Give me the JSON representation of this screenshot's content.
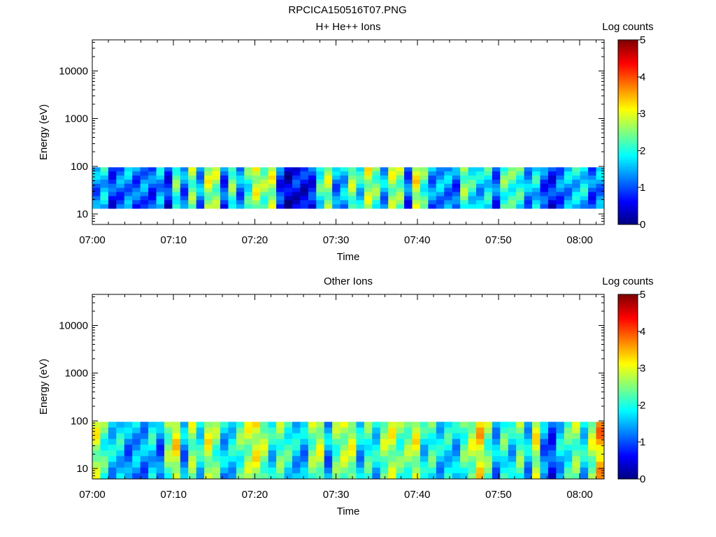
{
  "figure_title": "RPCICA150516T07.PNG",
  "colors": {
    "colormap": [
      "#00007f",
      "#0000ff",
      "#007fff",
      "#00ffff",
      "#7fff7f",
      "#ffff00",
      "#ff7f00",
      "#ff0000",
      "#7f0000"
    ],
    "axis": "#000000",
    "background": "#ffffff"
  },
  "chart_data": [
    {
      "type": "heatmap",
      "title": "H+ He++ Ions",
      "xlabel": "Time",
      "ylabel": "Energy (eV)",
      "x_tick_labels": [
        "07:00",
        "07:10",
        "07:20",
        "07:30",
        "07:40",
        "07:50",
        "08:00"
      ],
      "x_range": [
        "07:00",
        "08:03"
      ],
      "y_scale": "log",
      "y_range": [
        6,
        45000
      ],
      "y_tick_labels": [
        "10",
        "100",
        "1000",
        "10000"
      ],
      "y_tick_values": [
        10,
        100,
        1000,
        10000
      ],
      "colorbar": {
        "label": "Log counts",
        "range": [
          0,
          5
        ],
        "tick_labels": [
          "0",
          "1",
          "2",
          "3",
          "4",
          "5"
        ]
      },
      "grid": false,
      "energy_band_eV": [
        13,
        95
      ],
      "column_values_log_counts": [
        1.4,
        1.8,
        1.0,
        1.3,
        1.5,
        1.2,
        1.4,
        1.1,
        1.6,
        0.9,
        2.4,
        1.3,
        2.6,
        1.5,
        2.9,
        2.7,
        1.1,
        2.5,
        1.4,
        2.2,
        3.0,
        2.6,
        2.9,
        1.0,
        0.5,
        0.8,
        0.7,
        0.9,
        2.2,
        2.8,
        1.4,
        1.7,
        2.7,
        1.9,
        2.9,
        2.5,
        1.6,
        2.8,
        2.6,
        1.2,
        3.1,
        2.3,
        1.4,
        1.6,
        1.5,
        1.2,
        2.6,
        2.1,
        1.7,
        2.0,
        1.2,
        2.4,
        2.3,
        2.2,
        1.5,
        1.9,
        1.1,
        0.9,
        1.3,
        1.6,
        1.8,
        1.9,
        1.2,
        1.5
      ]
    },
    {
      "type": "heatmap",
      "title": "Other Ions",
      "xlabel": "Time",
      "ylabel": "Energy (eV)",
      "x_tick_labels": [
        "07:00",
        "07:10",
        "07:20",
        "07:30",
        "07:40",
        "07:50",
        "08:00"
      ],
      "x_range": [
        "07:00",
        "08:03"
      ],
      "y_scale": "log",
      "y_range": [
        6,
        45000
      ],
      "y_tick_labels": [
        "10",
        "100",
        "1000",
        "10000"
      ],
      "y_tick_values": [
        10,
        100,
        1000,
        10000
      ],
      "colorbar": {
        "label": "Log counts",
        "range": [
          0,
          5
        ],
        "tick_labels": [
          "0",
          "1",
          "2",
          "3",
          "4",
          "5"
        ]
      },
      "grid": false,
      "energy_band_eV": [
        6,
        95
      ],
      "column_values_log_counts": [
        2.9,
        2.3,
        1.8,
        1.9,
        1.4,
        1.6,
        1.5,
        1.9,
        1.3,
        2.6,
        3.2,
        1.5,
        2.7,
        2.0,
        3.0,
        2.5,
        1.7,
        1.9,
        2.4,
        2.8,
        3.1,
        2.7,
        1.9,
        2.5,
        2.2,
        1.8,
        1.6,
        2.6,
        2.9,
        1.5,
        2.5,
        2.8,
        2.9,
        1.7,
        2.3,
        1.9,
        2.7,
        2.9,
        2.4,
        2.6,
        3.0,
        1.9,
        2.3,
        1.8,
        2.0,
        1.7,
        2.4,
        2.8,
        3.3,
        2.5,
        1.6,
        2.3,
        1.8,
        2.5,
        1.7,
        3.0,
        1.4,
        1.0,
        1.8,
        2.2,
        2.6,
        1.9,
        2.8,
        3.6
      ]
    }
  ]
}
